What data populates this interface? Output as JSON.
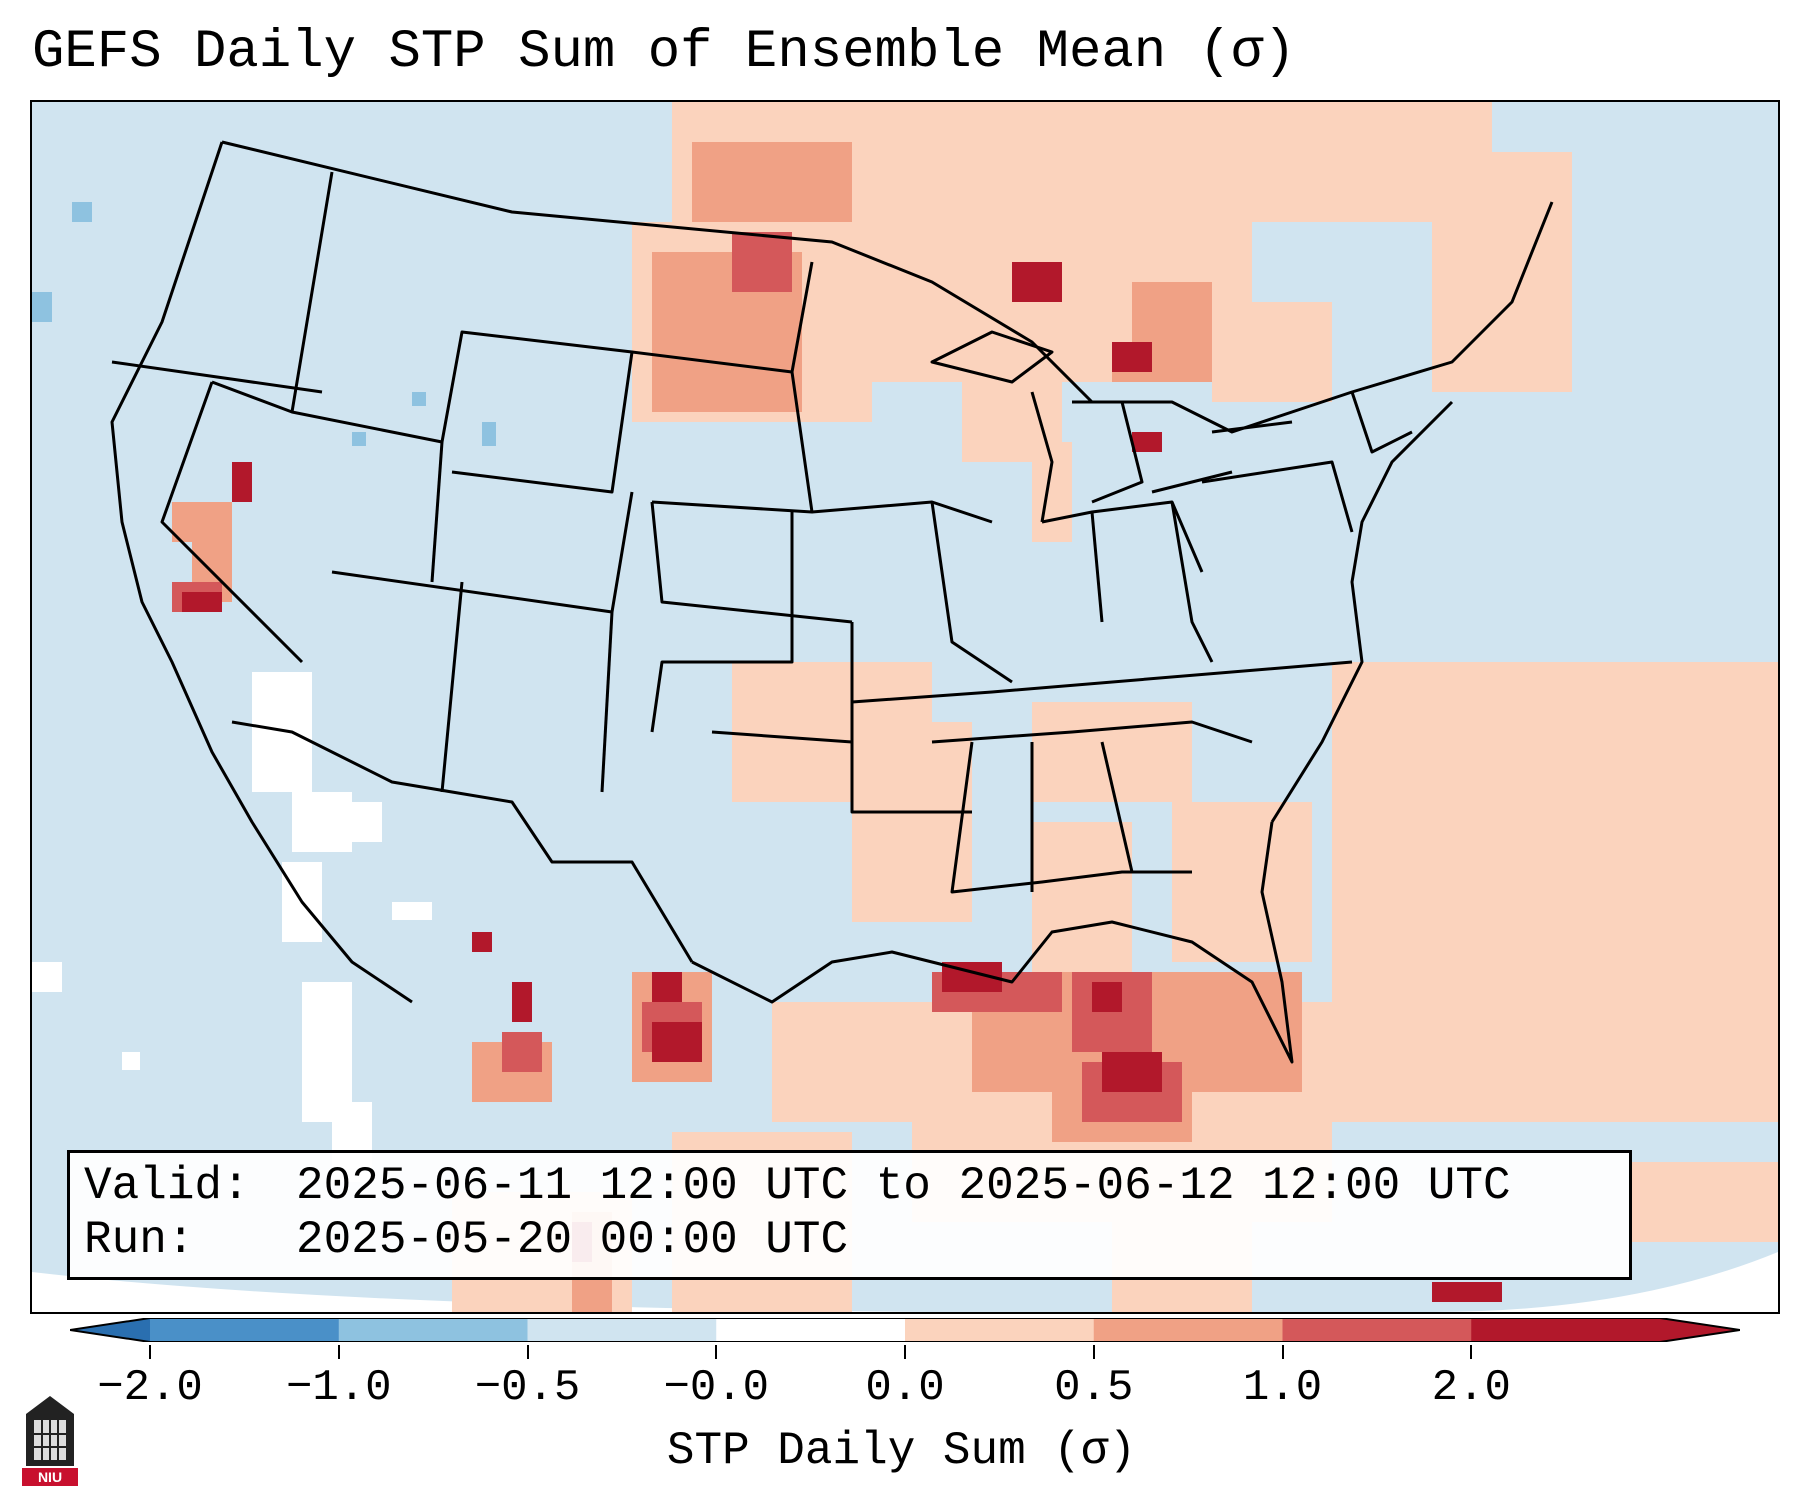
{
  "title": "GEFS Daily STP Sum of Ensemble Mean (σ)",
  "info": {
    "valid_label": "Valid:",
    "valid_value": "2025-06-11 12:00 UTC to 2025-06-12 12:00 UTC",
    "run_label": "Run:",
    "run_value": "2025-05-20 00:00 UTC"
  },
  "colorbar": {
    "label": "STP Daily Sum (σ)",
    "ticks": [
      "−2.0",
      "−1.0",
      "−0.5",
      "−0.0",
      "0.0",
      "0.5",
      "1.0",
      "2.0"
    ],
    "bins": [
      {
        "color": "#4a90c8"
      },
      {
        "color": "#8ec2e0"
      },
      {
        "color": "#d0e4f0"
      },
      {
        "color": "#ffffff"
      },
      {
        "color": "#fbd3bd"
      },
      {
        "color": "#f0a185"
      },
      {
        "color": "#d4585a"
      },
      {
        "color": "#b2182b"
      }
    ],
    "extend_min_color": "#2a6fb0",
    "extend_max_color": "#b2182b"
  },
  "colors": {
    "ocean_background": "#d0e4f0",
    "neutral": "#ffffff",
    "border_lines": "#000000"
  },
  "logo": {
    "text": "NIU"
  }
}
